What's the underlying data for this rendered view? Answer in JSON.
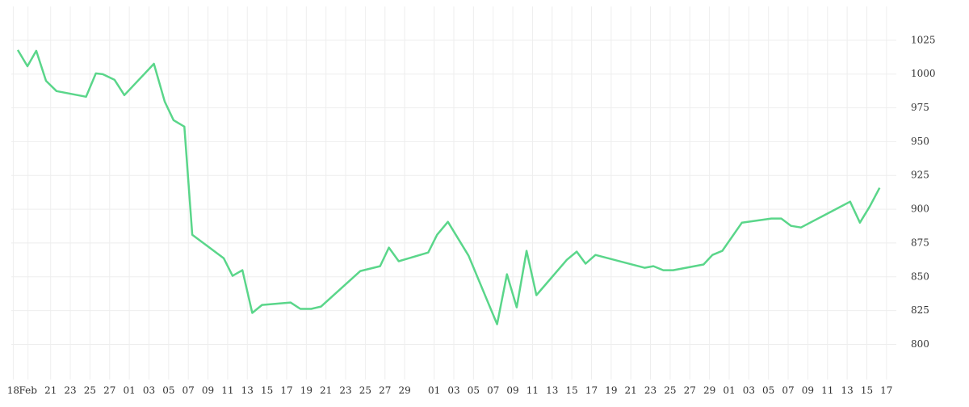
{
  "chart_data": {
    "type": "line",
    "x": [
      0.66,
      1.64,
      2.54,
      3.53,
      4.6,
      7.6,
      8.6,
      9.3,
      10.5,
      11.5,
      14.5,
      15.6,
      16.5,
      17.6,
      18.4,
      21.6,
      22.5,
      23.5,
      24.5,
      25.5,
      28.4,
      29.4,
      30.5,
      31.5,
      35.5,
      37.5,
      38.4,
      39.4,
      42.4,
      43.3,
      44.4,
      46.5,
      49.4,
      50.4,
      51.4,
      52.4,
      53.4,
      56.5,
      57.5,
      58.4,
      59.4,
      64.4,
      65.3,
      66.3,
      67.3,
      70.4,
      71.3,
      72.3,
      74.3,
      77.3,
      78.3,
      79.3,
      80.3,
      85.3,
      86.3,
      87.3,
      88.3
    ],
    "series": [
      {
        "color": "#5ad68a",
        "values": [
          1017.8,
          1005.8,
          1017.2,
          995,
          987.4,
          983.2,
          1000.5,
          999.9,
          995.7,
          984.4,
          1007.6,
          979.6,
          965.9,
          961.1,
          881.1,
          863.8,
          850.7,
          854.9,
          823.3,
          829.2,
          831,
          826.3,
          826.3,
          828,
          854.3,
          857.9,
          871.6,
          861.5,
          868,
          881.1,
          890.7,
          865.6,
          814.9,
          851.9,
          827.4,
          869.2,
          836.4,
          862.6,
          868.6,
          859.7,
          866.2,
          856.7,
          857.9,
          854.9,
          854.9,
          859.1,
          866.2,
          869.2,
          890.1,
          893.1,
          893.1,
          887.7,
          886.5,
          905.6,
          890.1,
          902,
          915.8
        ]
      }
    ],
    "xlim": [
      0,
      90
    ],
    "xticks": [
      {
        "value": 0.2,
        "label": "18"
      },
      {
        "value": 1.7,
        "label": "Feb"
      },
      {
        "value": 4,
        "label": "21"
      },
      {
        "value": 6,
        "label": "23"
      },
      {
        "value": 8,
        "label": "25"
      },
      {
        "value": 10,
        "label": "27"
      },
      {
        "value": 12,
        "label": "01"
      },
      {
        "value": 14,
        "label": "03"
      },
      {
        "value": 16,
        "label": "05"
      },
      {
        "value": 18,
        "label": "07"
      },
      {
        "value": 20,
        "label": "09"
      },
      {
        "value": 22,
        "label": "11"
      },
      {
        "value": 24,
        "label": "13"
      },
      {
        "value": 26,
        "label": "15"
      },
      {
        "value": 28,
        "label": "17"
      },
      {
        "value": 30,
        "label": "19"
      },
      {
        "value": 32,
        "label": "21"
      },
      {
        "value": 34,
        "label": "23"
      },
      {
        "value": 36,
        "label": "25"
      },
      {
        "value": 38,
        "label": "27"
      },
      {
        "value": 40,
        "label": "29"
      },
      {
        "value": 43,
        "label": "01"
      },
      {
        "value": 45,
        "label": "03"
      },
      {
        "value": 47,
        "label": "05"
      },
      {
        "value": 49,
        "label": "07"
      },
      {
        "value": 51,
        "label": "09"
      },
      {
        "value": 53,
        "label": "11"
      },
      {
        "value": 55,
        "label": "13"
      },
      {
        "value": 57,
        "label": "15"
      },
      {
        "value": 59,
        "label": "17"
      },
      {
        "value": 61,
        "label": "19"
      },
      {
        "value": 63,
        "label": "21"
      },
      {
        "value": 65,
        "label": "23"
      },
      {
        "value": 67,
        "label": "25"
      },
      {
        "value": 69,
        "label": "27"
      },
      {
        "value": 71,
        "label": "29"
      },
      {
        "value": 73,
        "label": "01"
      },
      {
        "value": 75,
        "label": "03"
      },
      {
        "value": 77,
        "label": "05"
      },
      {
        "value": 79,
        "label": "07"
      },
      {
        "value": 81,
        "label": "09"
      },
      {
        "value": 83,
        "label": "11"
      },
      {
        "value": 85,
        "label": "13"
      },
      {
        "value": 87,
        "label": "15"
      },
      {
        "value": 89,
        "label": "17"
      }
    ],
    "ylim": [
      774,
      1050
    ],
    "yticks": [
      800,
      825,
      850,
      875,
      900,
      925,
      950,
      975,
      1000,
      1025
    ],
    "grid": true
  }
}
